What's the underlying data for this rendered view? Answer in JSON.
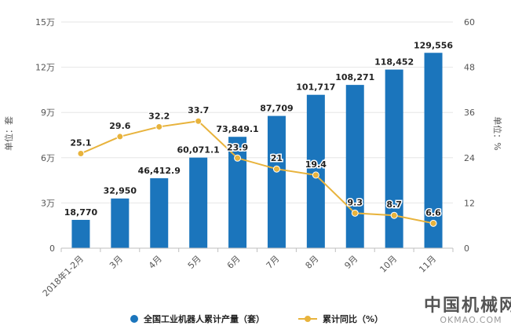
{
  "chart_data": {
    "type": "bar",
    "categories": [
      "2018年1-2月",
      "3月",
      "4月",
      "5月",
      "6月",
      "7月",
      "8月",
      "9月",
      "10月",
      "11月"
    ],
    "series": [
      {
        "name": "全国工业机器人累计产量（套）",
        "type": "bar",
        "axis": "left",
        "values": [
          18770,
          32950,
          46412.9,
          60071.1,
          73849.1,
          87709,
          101717,
          108271,
          118452,
          129556
        ],
        "labels": [
          "18,770",
          "32,950",
          "46,412.9",
          "60,071.1",
          "73,849.1",
          "87,709",
          "101,717",
          "108,271",
          "118,452",
          "129,556"
        ],
        "color": "#1b75bc"
      },
      {
        "name": "累计同比（%）",
        "type": "line",
        "axis": "right",
        "values": [
          25.1,
          29.6,
          32.2,
          33.7,
          23.9,
          21,
          19.4,
          9.3,
          8.7,
          6.6
        ],
        "labels": [
          "25.1",
          "29.6",
          "32.2",
          "33.7",
          "23.9",
          "21",
          "19.4",
          "9.3",
          "8.7",
          "6.6"
        ],
        "color": "#e8b33c"
      }
    ],
    "y_left": {
      "label": "单位：套",
      "ylim": [
        0,
        150000
      ],
      "ticks": [
        0,
        30000,
        60000,
        90000,
        120000,
        150000
      ],
      "tick_labels": [
        "0",
        "3万",
        "6万",
        "9万",
        "12万",
        "15万"
      ]
    },
    "y_right": {
      "label": "单位：%",
      "ylim": [
        0,
        60
      ],
      "ticks": [
        0,
        12,
        24,
        36,
        48,
        60
      ],
      "tick_labels": [
        "0",
        "12",
        "24",
        "36",
        "48",
        "60"
      ]
    },
    "grid": true,
    "legend_position": "bottom"
  },
  "watermark": {
    "text_cn": "中国机械网",
    "text_en": "OKMAO.COM"
  }
}
